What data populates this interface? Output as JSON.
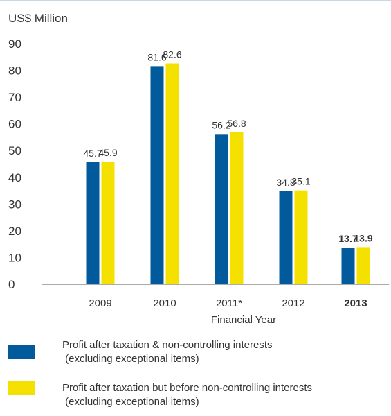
{
  "chart_data": {
    "type": "bar",
    "ylabel": "US$ Million",
    "xlabel": "Financial  Year",
    "categories": [
      "2009",
      "2010",
      "2011*",
      "2012",
      "2013"
    ],
    "highlight_category": "2013",
    "ylim": [
      0,
      90
    ],
    "yticks": [
      0,
      10,
      20,
      30,
      40,
      50,
      60,
      70,
      80,
      90
    ],
    "grid": false,
    "series": [
      {
        "name": "Profit after taxation & non-controlling interests (excluding exceptional items)",
        "values": [
          45.7,
          81.6,
          56.2,
          34.8,
          13.7
        ],
        "labels": [
          "45.7",
          "81.6",
          "56.2",
          "34.8",
          "13.7"
        ],
        "color": "#005a9b"
      },
      {
        "name": "Profit after taxation but before non-controlling interests (excluding exceptional items)",
        "values": [
          45.9,
          82.6,
          56.8,
          35.1,
          13.9
        ],
        "labels": [
          "45.9",
          "82.6",
          "56.8",
          "35.1",
          "13.9"
        ],
        "color": "#f5e100"
      }
    ]
  },
  "legend": [
    {
      "line1": "Profit after taxation & non-controlling interests",
      "line2": " (excluding exceptional items)",
      "color": "#005a9b"
    },
    {
      "line1": "Profit after taxation but before non-controlling interests",
      "line2": " (excluding exceptional items)",
      "color": "#f5e100"
    }
  ],
  "colors": {
    "top_rule": "#b9c9d8",
    "axis": "#555555",
    "text": "#333333"
  }
}
